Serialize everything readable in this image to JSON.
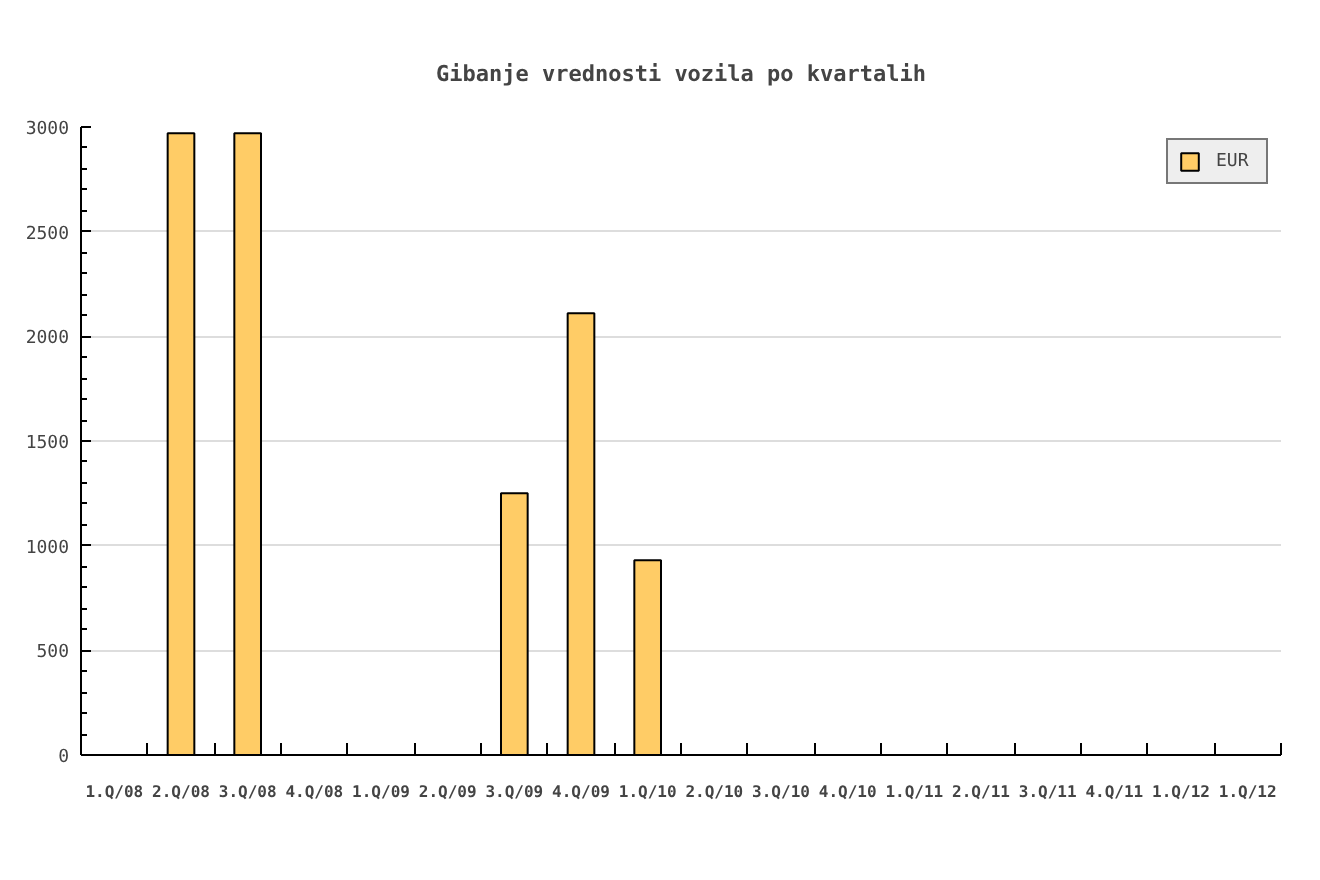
{
  "chart_data": {
    "type": "bar",
    "title": "Gibanje vrednosti vozila po kvartalih",
    "categories": [
      "1.Q/08",
      "2.Q/08",
      "3.Q/08",
      "4.Q/08",
      "1.Q/09",
      "2.Q/09",
      "3.Q/09",
      "4.Q/09",
      "1.Q/10",
      "2.Q/10",
      "3.Q/10",
      "4.Q/10",
      "1.Q/11",
      "2.Q/11",
      "3.Q/11",
      "4.Q/11",
      "1.Q/12",
      "1.Q/12"
    ],
    "series": [
      {
        "name": "EUR",
        "color": "#ffcc66",
        "values": [
          null,
          2970,
          2970,
          null,
          null,
          null,
          1250,
          2110,
          930,
          null,
          null,
          null,
          null,
          null,
          null,
          null,
          null,
          null
        ]
      }
    ],
    "ylim": [
      0,
      3000
    ],
    "yticks": [
      0,
      500,
      1000,
      1500,
      2000,
      2500,
      3000
    ],
    "grid": "y",
    "legend": "top right"
  }
}
